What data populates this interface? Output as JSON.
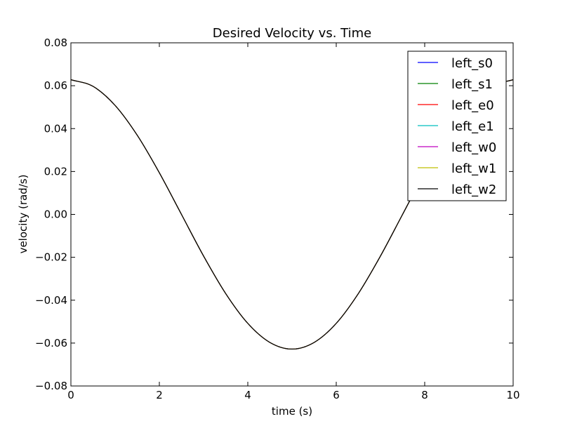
{
  "chart_data": {
    "type": "line",
    "title": "Desired Velocity vs. Time",
    "xlabel": "time (s)",
    "ylabel": "velocity (rad/s)",
    "xlim": [
      0,
      10
    ],
    "ylim": [
      -0.08,
      0.08
    ],
    "xticks": [
      "0",
      "2",
      "4",
      "6",
      "8",
      "10"
    ],
    "yticks": [
      "−0.08",
      "−0.06",
      "−0.04",
      "−0.02",
      "0.00",
      "0.02",
      "0.04",
      "0.06",
      "0.08"
    ],
    "grid": false,
    "legend_position": "top-right",
    "x": [
      0,
      0.5,
      1,
      1.5,
      2,
      2.5,
      3,
      3.5,
      4,
      4.5,
      5,
      5.5,
      6,
      6.5,
      7,
      7.5,
      8,
      8.5,
      9,
      9.5,
      10
    ],
    "series": [
      {
        "name": "left_s0",
        "color": "#0000ff",
        "values": [
          0.0628,
          0.0597,
          0.0508,
          0.0369,
          0.0194,
          0.0,
          -0.0194,
          -0.0369,
          -0.0508,
          -0.0597,
          -0.0628,
          -0.0597,
          -0.0508,
          -0.0369,
          -0.0194,
          0.0,
          0.0194,
          0.0369,
          0.0508,
          0.0597,
          0.0628
        ]
      },
      {
        "name": "left_s1",
        "color": "#008000",
        "values": [
          0.0628,
          0.0597,
          0.0508,
          0.0369,
          0.0194,
          0.0,
          -0.0194,
          -0.0369,
          -0.0508,
          -0.0597,
          -0.0628,
          -0.0597,
          -0.0508,
          -0.0369,
          -0.0194,
          0.0,
          0.0194,
          0.0369,
          0.0508,
          0.0597,
          0.0628
        ]
      },
      {
        "name": "left_e0",
        "color": "#ff0000",
        "values": [
          0.0628,
          0.0597,
          0.0508,
          0.0369,
          0.0194,
          0.0,
          -0.0194,
          -0.0369,
          -0.0508,
          -0.0597,
          -0.0628,
          -0.0597,
          -0.0508,
          -0.0369,
          -0.0194,
          0.0,
          0.0194,
          0.0369,
          0.0508,
          0.0597,
          0.0628
        ]
      },
      {
        "name": "left_e1",
        "color": "#00bfbf",
        "values": [
          0.0628,
          0.0597,
          0.0508,
          0.0369,
          0.0194,
          0.0,
          -0.0194,
          -0.0369,
          -0.0508,
          -0.0597,
          -0.0628,
          -0.0597,
          -0.0508,
          -0.0369,
          -0.0194,
          0.0,
          0.0194,
          0.0369,
          0.0508,
          0.0597,
          0.0628
        ]
      },
      {
        "name": "left_w0",
        "color": "#bf00bf",
        "values": [
          0.0628,
          0.0597,
          0.0508,
          0.0369,
          0.0194,
          0.0,
          -0.0194,
          -0.0369,
          -0.0508,
          -0.0597,
          -0.0628,
          -0.0597,
          -0.0508,
          -0.0369,
          -0.0194,
          0.0,
          0.0194,
          0.0369,
          0.0508,
          0.0597,
          0.0628
        ]
      },
      {
        "name": "left_w1",
        "color": "#bfbf00",
        "values": [
          0.0628,
          0.0597,
          0.0508,
          0.0369,
          0.0194,
          0.0,
          -0.0194,
          -0.0369,
          -0.0508,
          -0.0597,
          -0.0628,
          -0.0597,
          -0.0508,
          -0.0369,
          -0.0194,
          0.0,
          0.0194,
          0.0369,
          0.0508,
          0.0597,
          0.0628
        ]
      },
      {
        "name": "left_w2",
        "color": "#000000",
        "values": [
          0.0628,
          0.0597,
          0.0508,
          0.0369,
          0.0194,
          0.0,
          -0.0194,
          -0.0369,
          -0.0508,
          -0.0597,
          -0.0628,
          -0.0597,
          -0.0508,
          -0.0369,
          -0.0194,
          0.0,
          0.0194,
          0.0369,
          0.0508,
          0.0597,
          0.0628
        ]
      }
    ]
  }
}
